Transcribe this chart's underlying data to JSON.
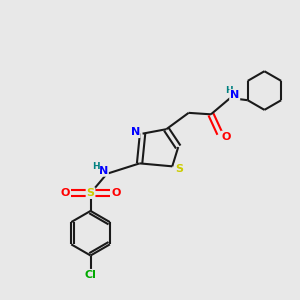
{
  "bg_color": "#e8e8e8",
  "bond_color": "#1a1a1a",
  "atom_colors": {
    "N": "#0000ff",
    "S": "#cccc00",
    "O": "#ff0000",
    "Cl": "#00aa00",
    "C": "#1a1a1a",
    "H": "#008080"
  },
  "figsize": [
    3.0,
    3.0
  ],
  "dpi": 100
}
